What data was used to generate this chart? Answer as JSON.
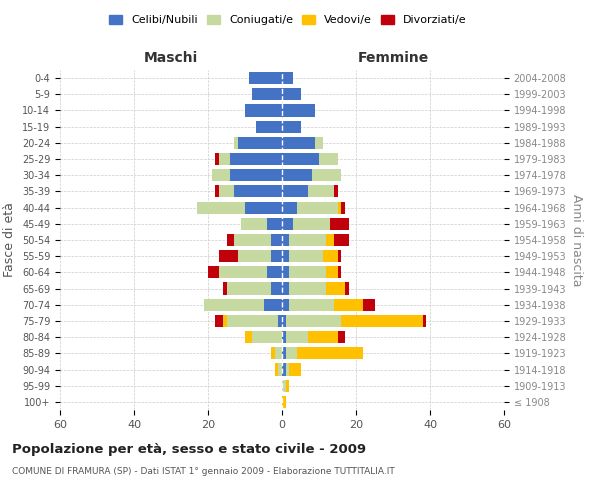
{
  "age_groups": [
    "100+",
    "95-99",
    "90-94",
    "85-89",
    "80-84",
    "75-79",
    "70-74",
    "65-69",
    "60-64",
    "55-59",
    "50-54",
    "45-49",
    "40-44",
    "35-39",
    "30-34",
    "25-29",
    "20-24",
    "15-19",
    "10-14",
    "5-9",
    "0-4"
  ],
  "birth_years": [
    "≤ 1908",
    "1909-1913",
    "1914-1918",
    "1919-1923",
    "1924-1928",
    "1929-1933",
    "1934-1938",
    "1939-1943",
    "1944-1948",
    "1949-1953",
    "1954-1958",
    "1959-1963",
    "1964-1968",
    "1969-1973",
    "1974-1978",
    "1979-1983",
    "1984-1988",
    "1989-1993",
    "1994-1998",
    "1999-2003",
    "2004-2008"
  ],
  "males": {
    "celibi": [
      0,
      0,
      0,
      0,
      0,
      1,
      5,
      3,
      4,
      3,
      3,
      4,
      10,
      13,
      14,
      14,
      12,
      7,
      10,
      8,
      9
    ],
    "coniugati": [
      0,
      0,
      1,
      2,
      8,
      14,
      16,
      12,
      13,
      9,
      10,
      7,
      13,
      4,
      5,
      3,
      1,
      0,
      0,
      0,
      0
    ],
    "vedovi": [
      0,
      0,
      1,
      1,
      2,
      1,
      0,
      0,
      0,
      0,
      0,
      0,
      0,
      0,
      0,
      0,
      0,
      0,
      0,
      0,
      0
    ],
    "divorziati": [
      0,
      0,
      0,
      0,
      0,
      2,
      0,
      1,
      3,
      5,
      2,
      0,
      0,
      1,
      0,
      1,
      0,
      0,
      0,
      0,
      0
    ]
  },
  "females": {
    "nubili": [
      0,
      0,
      1,
      1,
      1,
      1,
      2,
      2,
      2,
      2,
      2,
      3,
      4,
      7,
      8,
      10,
      9,
      5,
      9,
      5,
      3
    ],
    "coniugate": [
      0,
      1,
      1,
      3,
      6,
      15,
      12,
      10,
      10,
      9,
      10,
      10,
      11,
      7,
      8,
      5,
      2,
      0,
      0,
      0,
      0
    ],
    "vedove": [
      1,
      1,
      3,
      18,
      8,
      22,
      8,
      5,
      3,
      4,
      2,
      0,
      1,
      0,
      0,
      0,
      0,
      0,
      0,
      0,
      0
    ],
    "divorziate": [
      0,
      0,
      0,
      0,
      2,
      1,
      3,
      1,
      1,
      1,
      4,
      5,
      1,
      1,
      0,
      0,
      0,
      0,
      0,
      0,
      0
    ]
  },
  "colors": {
    "celibi_nubili": "#4472c4",
    "coniugati": "#c5d9a0",
    "vedovi": "#ffc000",
    "divorziati": "#c0000a"
  },
  "title": "Popolazione per età, sesso e stato civile - 2009",
  "subtitle": "COMUNE DI FRAMURA (SP) - Dati ISTAT 1° gennaio 2009 - Elaborazione TUTTITALIA.IT",
  "ylabel_left": "Fasce di età",
  "ylabel_right": "Anni di nascita",
  "xlabel_left": "Maschi",
  "xlabel_right": "Femmine",
  "xlim": 60,
  "background_color": "#ffffff",
  "grid_color": "#cccccc"
}
